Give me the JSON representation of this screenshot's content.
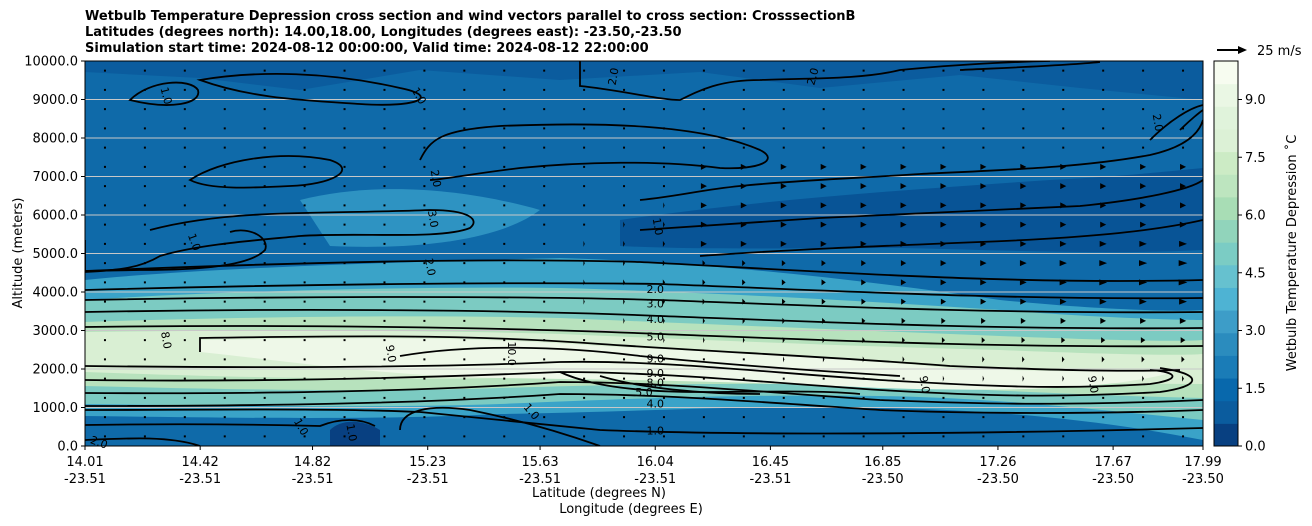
{
  "chart_data": {
    "type": "contour_cross_section",
    "title_lines": [
      "Wetbulb Temperature Depression cross section and wind vectors parallel to cross section: CrosssectionB",
      "Latitudes (degrees north): 14.00,18.00, Longitudes (degrees east): -23.50,-23.50",
      "Simulation start time: 2024-08-12 00:00:00, Valid time: 2024-08-12 22:00:00"
    ],
    "ylabel": "Altitude (meters)",
    "xlabel_lines": [
      "Latitude (degrees N)",
      "Longitude (degrees E)"
    ],
    "y_ticks": [
      "0.0",
      "1000.0",
      "2000.0",
      "3000.0",
      "4000.0",
      "5000.0",
      "6000.0",
      "7000.0",
      "8000.0",
      "9000.0",
      "10000.0"
    ],
    "ylim": [
      0,
      10000
    ],
    "x_ticks": [
      {
        "lat": "14.01",
        "lon": "-23.51"
      },
      {
        "lat": "14.42",
        "lon": "-23.51"
      },
      {
        "lat": "14.82",
        "lon": "-23.51"
      },
      {
        "lat": "15.23",
        "lon": "-23.51"
      },
      {
        "lat": "15.63",
        "lon": "-23.51"
      },
      {
        "lat": "16.04",
        "lon": "-23.51"
      },
      {
        "lat": "16.45",
        "lon": "-23.51"
      },
      {
        "lat": "16.85",
        "lon": "-23.50"
      },
      {
        "lat": "17.26",
        "lon": "-23.50"
      },
      {
        "lat": "17.67",
        "lon": "-23.50"
      },
      {
        "lat": "17.99",
        "lon": "-23.50"
      }
    ],
    "xlim": [
      14.01,
      17.99
    ],
    "colorbar": {
      "label": "Wetbulb Temperature Depression ˚C",
      "ticks": [
        "0.0",
        "1.5",
        "3.0",
        "4.5",
        "6.0",
        "7.5",
        "9.0"
      ],
      "range": [
        0,
        10
      ],
      "colormap": "GnBu_r"
    },
    "wind_key": {
      "label": "25 m/s"
    },
    "contour_labels": [
      {
        "text": "1.0",
        "lat": 14.3,
        "alt": 9100,
        "rot": 75
      },
      {
        "text": "1.0",
        "lat": 15.2,
        "alt": 9100,
        "rot": 60
      },
      {
        "text": "2.0",
        "lat": 15.89,
        "alt": 9600,
        "rot": -80
      },
      {
        "text": "2.0",
        "lat": 16.6,
        "alt": 9600,
        "rot": -75
      },
      {
        "text": "2.0",
        "lat": 17.83,
        "alt": 8400,
        "rot": 80
      },
      {
        "text": "2.0",
        "lat": 15.26,
        "alt": 6950,
        "rot": 80
      },
      {
        "text": "3.0",
        "lat": 15.25,
        "alt": 5900,
        "rot": 80
      },
      {
        "text": "2.0",
        "lat": 15.24,
        "alt": 4650,
        "rot": 80
      },
      {
        "text": "1.0",
        "lat": 16.05,
        "alt": 5700,
        "rot": 80
      },
      {
        "text": "2.0",
        "lat": 16.04,
        "alt": 4080,
        "rot": 0
      },
      {
        "text": "3.0",
        "lat": 16.04,
        "alt": 3700,
        "rot": 0
      },
      {
        "text": "4.0",
        "lat": 16.04,
        "alt": 3300,
        "rot": 0
      },
      {
        "text": "5.0",
        "lat": 16.04,
        "alt": 2850,
        "rot": 0
      },
      {
        "text": "8.0",
        "lat": 14.3,
        "alt": 2750,
        "rot": 80
      },
      {
        "text": "9.0",
        "lat": 15.1,
        "alt": 2400,
        "rot": 80
      },
      {
        "text": "10.0",
        "lat": 15.53,
        "alt": 2400,
        "rot": 90
      },
      {
        "text": "9.0",
        "lat": 16.04,
        "alt": 2270,
        "rot": 0
      },
      {
        "text": "9.0",
        "lat": 16.04,
        "alt": 1900,
        "rot": 0
      },
      {
        "text": "8.0",
        "lat": 16.04,
        "alt": 1650,
        "rot": 0
      },
      {
        "text": "5.0",
        "lat": 16.0,
        "alt": 1400,
        "rot": 0
      },
      {
        "text": "4.0",
        "lat": 16.04,
        "alt": 1100,
        "rot": 0
      },
      {
        "text": "1.0",
        "lat": 16.04,
        "alt": 400,
        "rot": 0
      },
      {
        "text": "9.0",
        "lat": 17.0,
        "alt": 1600,
        "rot": 80
      },
      {
        "text": "9.0",
        "lat": 17.6,
        "alt": 1600,
        "rot": 80
      },
      {
        "text": "1.0",
        "lat": 14.4,
        "alt": 5300,
        "rot": 70
      },
      {
        "text": "1.0",
        "lat": 15.6,
        "alt": 900,
        "rot": 50
      },
      {
        "text": "1.0",
        "lat": 14.78,
        "alt": 500,
        "rot": 60
      },
      {
        "text": "1.0",
        "lat": 14.96,
        "alt": 350,
        "rot": 80
      },
      {
        "text": "2.0",
        "lat": 14.06,
        "alt": 100,
        "rot": 20
      }
    ]
  }
}
